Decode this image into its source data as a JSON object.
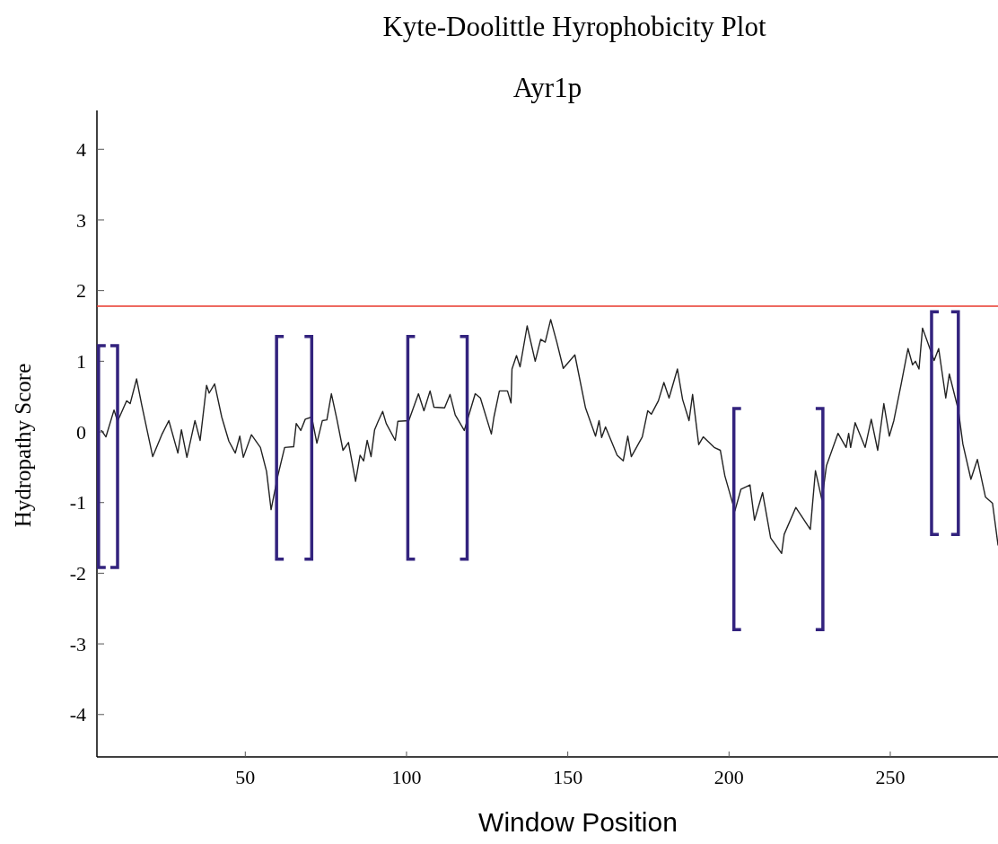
{
  "chart_data": {
    "type": "line",
    "title": "Kyte-Doolittle Hyrophobicity Plot",
    "subtitle": "Ayr1p",
    "xlabel": "Window Position",
    "ylabel": "Hydropathy Score",
    "xlim": [
      4,
      283.4
    ],
    "xticks": [
      50,
      100,
      150,
      200,
      250
    ],
    "ylim": [
      -4.6,
      4.55
    ],
    "yticks": [
      -4,
      -3,
      -2,
      -1,
      0,
      1,
      2,
      3,
      4
    ],
    "marker": "none",
    "line_style": "solid",
    "ref_lines": [
      {
        "axis": "y",
        "value": 1.78,
        "color": "#e8392b"
      }
    ],
    "series": [
      {
        "color": "#222222",
        "x": [
          5.4,
          6.8,
          9.3,
          10.4,
          13.2,
          14.3,
          16.3,
          17.9,
          21.3,
          24.1,
          26.3,
          29.1,
          30.2,
          31.9,
          34.4,
          36.0,
          38.0,
          38.8,
          40.5,
          42.7,
          44.9,
          46.9,
          48.3,
          49.4,
          51.9,
          54.7,
          56.6,
          58.0,
          60.0,
          62.2,
          65.0,
          65.8,
          67.2,
          68.6,
          70.6,
          72.2,
          73.9,
          75.3,
          76.7,
          78.4,
          80.3,
          82.0,
          84.2,
          85.6,
          86.7,
          87.8,
          89.0,
          90.1,
          91.2,
          92.6,
          93.7,
          96.5,
          97.3,
          100.7,
          103.7,
          105.4,
          107.3,
          108.5,
          111.8,
          113.5,
          115.1,
          117.9,
          121.3,
          122.9,
          126.3,
          127.1,
          128.8,
          131.3,
          132.4,
          132.7,
          134.1,
          135.2,
          137.4,
          139.9,
          141.6,
          143.0,
          144.7,
          146.6,
          148.6,
          152.2,
          155.5,
          158.6,
          159.7,
          160.5,
          161.7,
          165.3,
          167.2,
          168.6,
          169.7,
          173.1,
          174.8,
          175.9,
          178.1,
          179.8,
          181.4,
          184.0,
          185.6,
          187.6,
          188.7,
          190.6,
          192.0,
          195.4,
          197.3,
          198.7,
          201.8,
          203.7,
          206.5,
          207.9,
          210.4,
          212.9,
          216.3,
          217.1,
          220.7,
          225.2,
          226.8,
          228.8,
          230.2,
          233.8,
          236.3,
          237.1,
          237.7,
          239.1,
          242.2,
          244.1,
          246.1,
          248.0,
          249.7,
          251.1,
          253.3,
          255.5,
          256.9,
          257.8,
          258.9,
          260.0,
          263.6,
          265.0,
          267.2,
          268.3,
          271.1,
          272.5,
          275.0,
          277.0,
          279.5,
          281.7,
          283.4
        ],
        "values": [
          0.02,
          -0.07,
          0.31,
          0.15,
          0.44,
          0.4,
          0.75,
          0.38,
          -0.35,
          -0.04,
          0.16,
          -0.3,
          0.03,
          -0.36,
          0.16,
          -0.12,
          0.66,
          0.55,
          0.68,
          0.21,
          -0.13,
          -0.3,
          -0.06,
          -0.36,
          -0.04,
          -0.22,
          -0.56,
          -1.1,
          -0.64,
          -0.22,
          -0.21,
          0.12,
          0.02,
          0.18,
          0.21,
          -0.16,
          0.16,
          0.17,
          0.54,
          0.18,
          -0.26,
          -0.15,
          -0.7,
          -0.33,
          -0.41,
          -0.12,
          -0.35,
          0.03,
          0.15,
          0.29,
          0.12,
          -0.12,
          0.15,
          0.16,
          0.54,
          0.3,
          0.58,
          0.35,
          0.34,
          0.53,
          0.24,
          0.02,
          0.54,
          0.48,
          -0.03,
          0.21,
          0.58,
          0.58,
          0.41,
          0.89,
          1.08,
          0.92,
          1.5,
          1.0,
          1.31,
          1.27,
          1.59,
          1.27,
          0.9,
          1.09,
          0.34,
          -0.06,
          0.16,
          -0.08,
          0.07,
          -0.33,
          -0.41,
          -0.06,
          -0.35,
          -0.07,
          0.3,
          0.25,
          0.44,
          0.7,
          0.48,
          0.89,
          0.46,
          0.16,
          0.53,
          -0.18,
          -0.07,
          -0.22,
          -0.26,
          -0.62,
          -1.12,
          -0.81,
          -0.75,
          -1.25,
          -0.86,
          -1.5,
          -1.72,
          -1.45,
          -1.07,
          -1.38,
          -0.55,
          -0.96,
          -0.48,
          -0.02,
          -0.22,
          -0.02,
          -0.22,
          0.13,
          -0.22,
          0.18,
          -0.26,
          0.4,
          -0.06,
          0.16,
          0.66,
          1.18,
          0.95,
          1.0,
          0.89,
          1.47,
          1.01,
          1.18,
          0.48,
          0.82,
          0.31,
          -0.17,
          -0.67,
          -0.39,
          -0.92,
          -1.01,
          -1.6
        ]
      }
    ]
  }
}
